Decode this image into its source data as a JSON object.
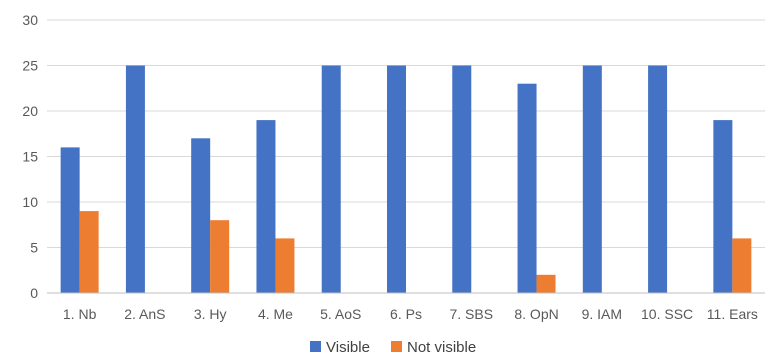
{
  "chart_data": {
    "type": "bar",
    "categories": [
      "1. Nb",
      "2. AnS",
      "3. Hy",
      "4. Me",
      "5. AoS",
      "6. Ps",
      "7. SBS",
      "8. OpN",
      "9. IAM",
      "10. SSC",
      "11. Ears"
    ],
    "series": [
      {
        "name": "Visible",
        "color": "#4472C4",
        "values": [
          16,
          25,
          17,
          19,
          25,
          25,
          25,
          23,
          25,
          25,
          19
        ]
      },
      {
        "name": "Not visible",
        "color": "#ED7D31",
        "values": [
          9,
          0,
          8,
          6,
          0,
          0,
          0,
          2,
          0,
          0,
          6
        ]
      }
    ],
    "ylim": [
      0,
      30
    ],
    "yticks": [
      "0",
      "5",
      "10",
      "15",
      "20",
      "25",
      "30"
    ],
    "grid": true,
    "legend_position": "bottom",
    "title": "",
    "xlabel": "",
    "ylabel": ""
  }
}
